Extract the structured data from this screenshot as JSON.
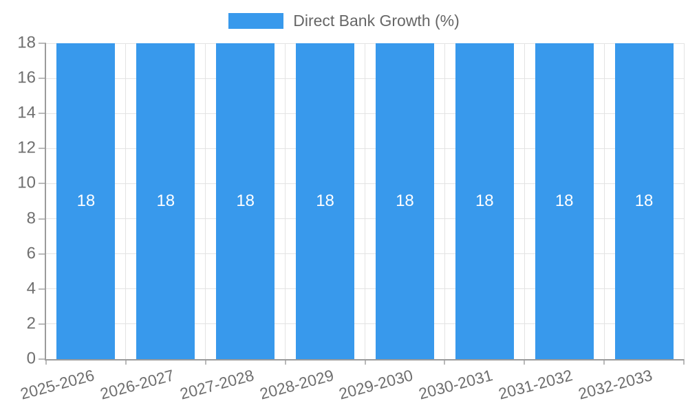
{
  "chart_data": {
    "type": "bar",
    "title": "",
    "categories": [
      "2025-2026",
      "2026-2027",
      "2027-2028",
      "2028-2029",
      "2029-2030",
      "2030-2031",
      "2031-2032",
      "2032-2033"
    ],
    "series": [
      {
        "name": "Direct Bank Growth (%)",
        "color": "#3899EC",
        "values": [
          18,
          18,
          18,
          18,
          18,
          18,
          18,
          18
        ]
      }
    ],
    "xlabel": "",
    "ylabel": "",
    "ylim": [
      0,
      18
    ],
    "yticks": [
      0,
      2,
      4,
      6,
      8,
      10,
      12,
      14,
      16,
      18
    ],
    "grid": true,
    "legend_position": "top",
    "x_label_rotation_deg": -15,
    "data_labels_visible": true
  },
  "colors": {
    "background": "#ffffff",
    "bar": "#3899EC",
    "grid": "#e3e3e3",
    "axis": "#9b9b9b",
    "tick_mark": "#b9b9b9",
    "tick_text": "#6f6f6f",
    "legend_text": "#666666",
    "bar_label": "#ffffff"
  }
}
